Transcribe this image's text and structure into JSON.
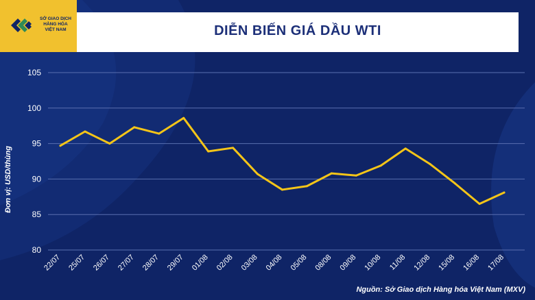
{
  "header": {
    "logo_lines": [
      "SỞ GIAO DỊCH",
      "HÀNG HÓA",
      "VIỆT NAM"
    ],
    "title": "DIỄN BIẾN GIÁ DẦU WTI"
  },
  "source": "Nguồn: Sở Giao dịch Hàng hóa Việt Nam (MXV)",
  "colors": {
    "background": "#0f2466",
    "line": "#f5c518",
    "header": "#ffffff",
    "logo": "#f1c12e"
  },
  "chart_data": {
    "type": "line",
    "title": "DIỄN BIẾN GIÁ DẦU WTI",
    "ylabel": "Đơn vị: USD/thùng",
    "xlabel": "",
    "ylim": [
      80,
      105
    ],
    "yticks": [
      "80",
      "85",
      "90",
      "95",
      "100",
      "105"
    ],
    "grid": true,
    "categories": [
      "22/07",
      "25/07",
      "26/07",
      "27/07",
      "28/07",
      "29/07",
      "01/08",
      "02/08",
      "03/08",
      "04/08",
      "05/08",
      "08/08",
      "09/08",
      "10/08",
      "11/08",
      "12/08",
      "15/08",
      "16/08",
      "17/08"
    ],
    "values": [
      94.7,
      96.7,
      95.0,
      97.3,
      96.4,
      98.6,
      93.9,
      94.4,
      90.7,
      88.5,
      89.0,
      90.8,
      90.5,
      91.9,
      94.3,
      92.1,
      89.4,
      86.5,
      88.1
    ]
  }
}
